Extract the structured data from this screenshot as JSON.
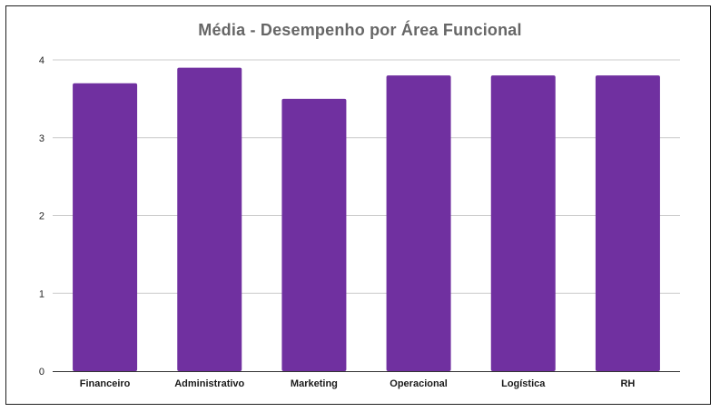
{
  "chart_data": {
    "type": "bar",
    "title": "Média - Desempenho por Área Funcional",
    "categories": [
      "Financeiro",
      "Administrativo",
      "Marketing",
      "Operacional",
      "Logística",
      "RH"
    ],
    "values": [
      3.7,
      3.9,
      3.5,
      3.8,
      3.8,
      3.8
    ],
    "xlabel": "",
    "ylabel": "",
    "ylim": [
      0,
      4
    ],
    "yticks": [
      "0",
      "1",
      "2",
      "3",
      "4"
    ],
    "grid": true,
    "legend": "none",
    "bar_color": "#7030a0",
    "grid_color": "#cccccc",
    "title_color": "#666666"
  }
}
